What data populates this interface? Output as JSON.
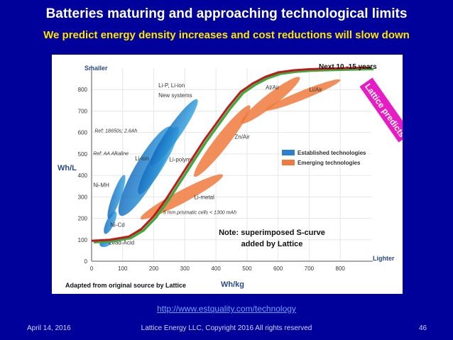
{
  "slide": {
    "title": "Batteries maturing and approaching technological limits",
    "subtitle": "We predict energy density increases and cost reductions will slow down",
    "link": "http://www.estquality.com/technology",
    "footer_date": "April 14, 2016",
    "footer_copyright": "Lattice Energy LLC, Copyright 2016  All rights reserved",
    "page_number": "46"
  },
  "colors": {
    "background": "#00009a",
    "title": "#ffffff",
    "subtitle": "#ffe600",
    "scurve_red": "#c0181c",
    "scurve_green": "#3daa3d",
    "established": "#2a7fd0",
    "emerging": "#f07a3c",
    "lattice_box": "#e81cc4"
  },
  "chart_data": {
    "type": "scatter",
    "xlabel": "Wh/kg",
    "ylabel": "Wh/L",
    "x_end_label": "Lighter",
    "y_end_label": "Smaller",
    "xlim": [
      0,
      900
    ],
    "ylim": [
      0,
      900
    ],
    "x_ticks": [
      0,
      100,
      200,
      300,
      400,
      500,
      600,
      700,
      800
    ],
    "y_ticks": [
      0,
      100,
      200,
      300,
      400,
      500,
      600,
      700,
      800
    ],
    "legend": [
      "Established technologies",
      "Emerging technologies"
    ],
    "regions": [
      {
        "label": "Lead-Acid",
        "kind": "established",
        "cx": 45,
        "cy": 85,
        "rx": 20,
        "ry": 12,
        "angle": -20
      },
      {
        "label": "Ni-Cd",
        "kind": "established",
        "cx": 60,
        "cy": 180,
        "rx": 40,
        "ry": 13,
        "angle": -65
      },
      {
        "label": "Ni-MH",
        "kind": "established",
        "cx": 80,
        "cy": 300,
        "rx": 75,
        "ry": 14,
        "angle": -70
      },
      {
        "label": "Li-ion",
        "kind": "established",
        "cx": 175,
        "cy": 420,
        "rx": 165,
        "ry": 38,
        "angle": -60
      },
      {
        "label": "Li-polymer",
        "kind": "established",
        "cx": 215,
        "cy": 470,
        "rx": 125,
        "ry": 24,
        "angle": -60
      },
      {
        "label": "Li-P, Li-ion New systems",
        "kind": "established",
        "cx": 265,
        "cy": 600,
        "rx": 130,
        "ry": 22,
        "angle": -55
      },
      {
        "label": "Li-metal",
        "kind": "emerging",
        "cx": 290,
        "cy": 300,
        "rx": 150,
        "ry": 20,
        "angle": -28
      },
      {
        "label": "Zn/Air",
        "kind": "emerging",
        "cx": 420,
        "cy": 560,
        "rx": 145,
        "ry": 22,
        "angle": -52
      },
      {
        "label": "Al/Air",
        "kind": "emerging",
        "cx": 575,
        "cy": 750,
        "rx": 120,
        "ry": 20,
        "angle": -38
      },
      {
        "label": "Li/Air",
        "kind": "emerging",
        "cx": 680,
        "cy": 775,
        "rx": 130,
        "ry": 14,
        "angle": -22
      }
    ],
    "annotations": [
      {
        "text": "Ref: 18650s; 2.6Ah",
        "x": 10,
        "y": 600
      },
      {
        "text": "Ref: AA Alkaline",
        "x": 5,
        "y": 495
      },
      {
        "text": "5 mm prismatic cells < 1300 mAh",
        "x": 230,
        "y": 220
      }
    ],
    "scurve": {
      "x": [
        0,
        60,
        120,
        160,
        200,
        240,
        280,
        320,
        360,
        400,
        440,
        480,
        520,
        560,
        600,
        650,
        700,
        760,
        820,
        880,
        900
      ],
      "y": [
        95,
        100,
        115,
        150,
        210,
        290,
        380,
        470,
        560,
        640,
        720,
        790,
        830,
        860,
        880,
        890,
        895,
        898,
        900,
        902,
        902
      ]
    },
    "scurve_label": "Next 10 -15 years",
    "note": "Note: superimposed S-curve added by Lattice",
    "lattice_label": "Lattice predicts",
    "source_note": "Adapted from original source by Lattice"
  }
}
